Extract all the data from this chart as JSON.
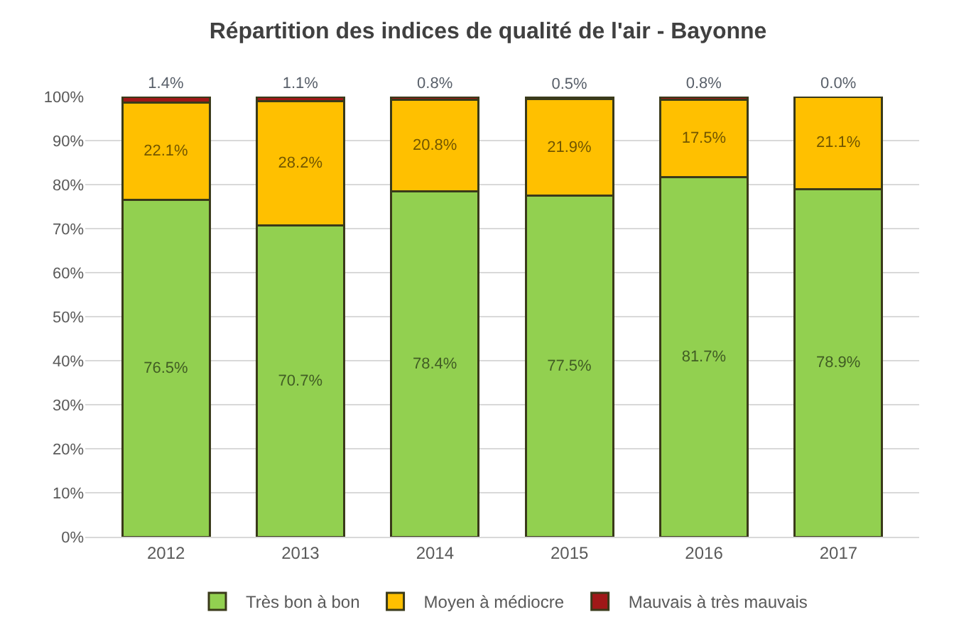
{
  "chart_data": {
    "type": "bar",
    "title": "Répartition des indices de qualité de l'air - Bayonne",
    "categories": [
      "2012",
      "2013",
      "2014",
      "2015",
      "2016",
      "2017"
    ],
    "stacked": true,
    "grid": "y",
    "legend": "bottom",
    "ylim": [
      0,
      100
    ],
    "yticks": [
      {
        "value": 0,
        "label": "0%"
      },
      {
        "value": 10,
        "label": "10%"
      },
      {
        "value": 20,
        "label": "20%"
      },
      {
        "value": 30,
        "label": "30%"
      },
      {
        "value": 40,
        "label": "40%"
      },
      {
        "value": 50,
        "label": "50%"
      },
      {
        "value": 60,
        "label": "60%"
      },
      {
        "value": 70,
        "label": "70%"
      },
      {
        "value": 80,
        "label": "80%"
      },
      {
        "value": 90,
        "label": "90%"
      },
      {
        "value": 100,
        "label": "100%"
      }
    ],
    "series": [
      {
        "name": "Très bon à bon",
        "color": "#92d050",
        "values": [
          76.5,
          70.7,
          78.4,
          77.5,
          81.7,
          78.9
        ],
        "value_labels": [
          "76.5%",
          "70.7%",
          "78.4%",
          "77.5%",
          "81.7%",
          "78.9%"
        ]
      },
      {
        "name": "Moyen à médiocre",
        "color": "#ffc000",
        "values": [
          22.1,
          28.2,
          20.8,
          21.9,
          17.5,
          21.1
        ],
        "value_labels": [
          "22.1%",
          "28.2%",
          "20.8%",
          "21.9%",
          "17.5%",
          "21.1%"
        ]
      },
      {
        "name": "Mauvais à très mauvais",
        "color": "#a01818",
        "values": [
          1.4,
          1.1,
          0.8,
          0.5,
          0.8,
          0.0
        ],
        "value_labels": [
          "1.4%",
          "1.1%",
          "0.8%",
          "0.5%",
          "0.8%",
          "0.0%"
        ]
      }
    ]
  }
}
